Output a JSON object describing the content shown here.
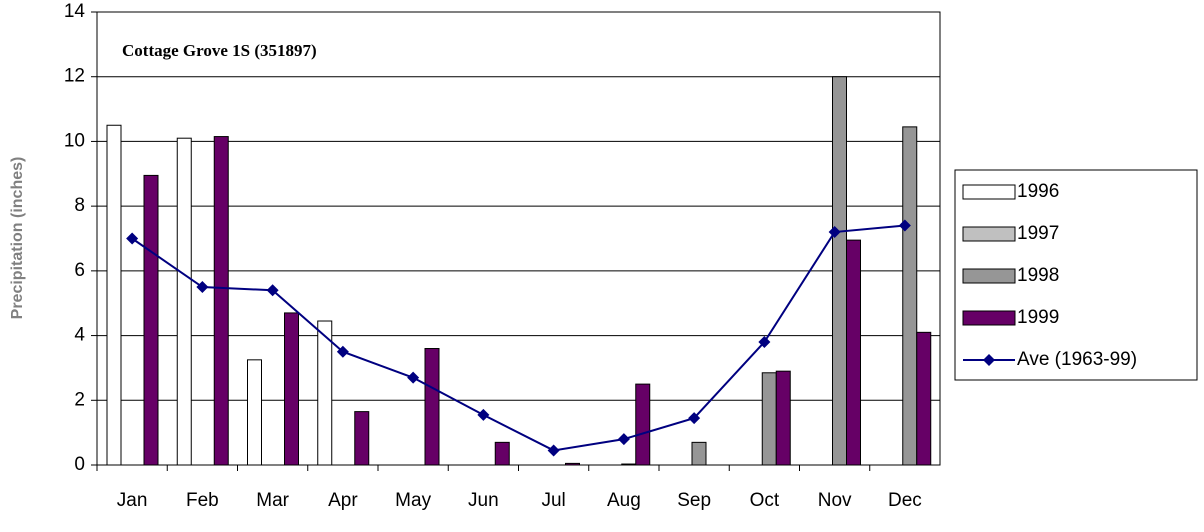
{
  "chart_data": {
    "type": "bar",
    "title": "Cottage Grove 1S (351897)",
    "y_label": "Precipitation (inches)",
    "categories": [
      "Jan",
      "Feb",
      "Mar",
      "Apr",
      "May",
      "Jun",
      "Jul",
      "Aug",
      "Sep",
      "Oct",
      "Nov",
      "Dec"
    ],
    "series": [
      {
        "name": "1996",
        "color": "#ffffff",
        "values": [
          10.5,
          10.1,
          3.25,
          4.45,
          null,
          null,
          null,
          null,
          null,
          null,
          null,
          null
        ]
      },
      {
        "name": "1997",
        "color": "#c0c0c0",
        "values": [
          null,
          null,
          null,
          null,
          null,
          null,
          null,
          null,
          null,
          null,
          null,
          null
        ]
      },
      {
        "name": "1998",
        "color": "#969696",
        "values": [
          null,
          null,
          null,
          null,
          null,
          null,
          null,
          0.03,
          0.7,
          2.85,
          12.0,
          10.45
        ]
      },
      {
        "name": "1999",
        "color": "#660066",
        "values": [
          8.95,
          10.15,
          4.7,
          1.65,
          3.6,
          0.7,
          0.05,
          2.5,
          null,
          2.9,
          6.95,
          4.1
        ]
      },
      {
        "name": "Ave (1963-99)",
        "color": "#000080",
        "type": "line",
        "values": [
          7.0,
          5.5,
          5.4,
          3.5,
          2.7,
          1.55,
          0.45,
          0.8,
          1.45,
          3.8,
          7.2,
          7.4
        ]
      }
    ],
    "ylim": [
      0,
      14
    ],
    "yticks": [
      0,
      2,
      4,
      6,
      8,
      10,
      12,
      14
    ],
    "grid": true,
    "legend": "right"
  }
}
